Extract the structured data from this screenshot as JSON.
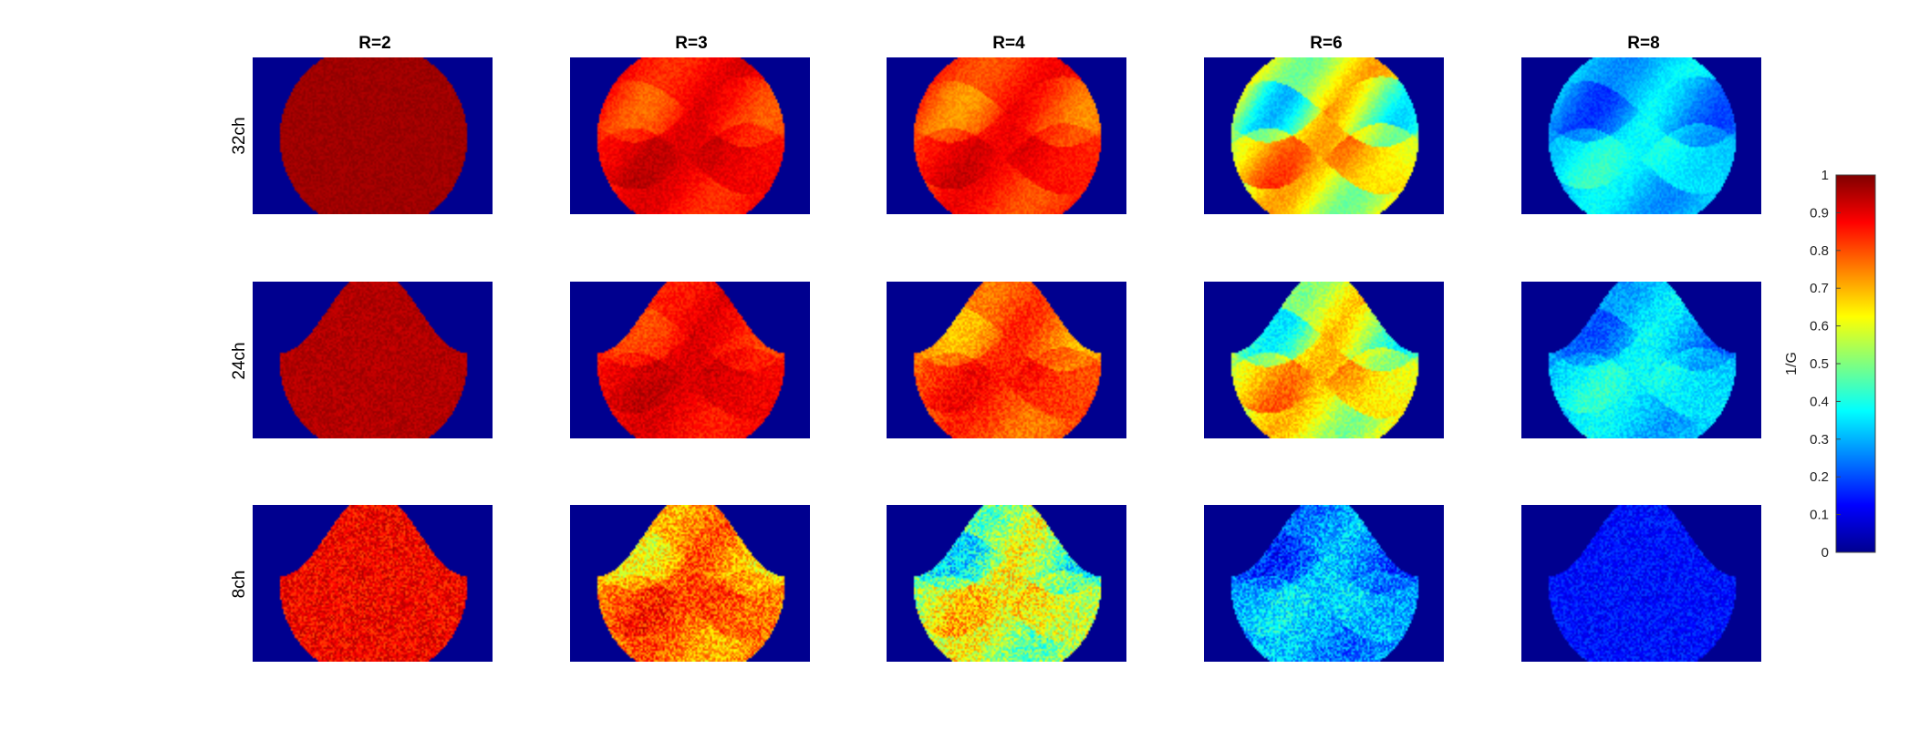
{
  "chart_data": {
    "type": "heatmap",
    "title": "",
    "column_titles": [
      "R=2",
      "R=3",
      "R=4",
      "R=6",
      "R=8"
    ],
    "row_labels": [
      "32ch",
      "24ch",
      "8ch"
    ],
    "colormap": "jet",
    "background_color": "#00008f",
    "colorbar": {
      "label": "1/G",
      "range": [
        0,
        1
      ],
      "ticks": [
        "0",
        "0.1",
        "0.2",
        "0.3",
        "0.4",
        "0.5",
        "0.6",
        "0.7",
        "0.8",
        "0.9",
        "1"
      ],
      "placement": "right"
    },
    "panels": [
      [
        {
          "mask": "circle",
          "mean": 0.97,
          "pattern": "uniform",
          "noise": 0.02
        },
        {
          "mask": "circle",
          "mean": 0.87,
          "pattern": "wave",
          "amp": 0.1,
          "noise": 0.03
        },
        {
          "mask": "circle",
          "mean": 0.84,
          "pattern": "wave",
          "amp": 0.12,
          "noise": 0.03
        },
        {
          "mask": "circle",
          "mean": 0.6,
          "pattern": "wave",
          "amp": 0.3,
          "noise": 0.03
        },
        {
          "mask": "circle",
          "mean": 0.32,
          "pattern": "wave",
          "amp": 0.15,
          "noise": 0.03
        }
      ],
      [
        {
          "mask": "notch",
          "mean": 0.95,
          "pattern": "uniform",
          "noise": 0.03
        },
        {
          "mask": "notch",
          "mean": 0.88,
          "pattern": "wave",
          "amp": 0.08,
          "noise": 0.04
        },
        {
          "mask": "notch",
          "mean": 0.8,
          "pattern": "wave",
          "amp": 0.12,
          "noise": 0.05
        },
        {
          "mask": "notch",
          "mean": 0.6,
          "pattern": "wave",
          "amp": 0.25,
          "noise": 0.05
        },
        {
          "mask": "notch",
          "mean": 0.33,
          "pattern": "wave",
          "amp": 0.13,
          "noise": 0.05
        }
      ],
      [
        {
          "mask": "notch",
          "mean": 0.88,
          "pattern": "uniform",
          "noise": 0.08
        },
        {
          "mask": "notch",
          "mean": 0.75,
          "pattern": "wave",
          "amp": 0.14,
          "noise": 0.1
        },
        {
          "mask": "notch",
          "mean": 0.55,
          "pattern": "wave",
          "amp": 0.22,
          "noise": 0.12
        },
        {
          "mask": "notch",
          "mean": 0.28,
          "pattern": "wave",
          "amp": 0.12,
          "noise": 0.1
        },
        {
          "mask": "notch",
          "mean": 0.14,
          "pattern": "uniform",
          "noise": 0.06
        }
      ]
    ]
  }
}
